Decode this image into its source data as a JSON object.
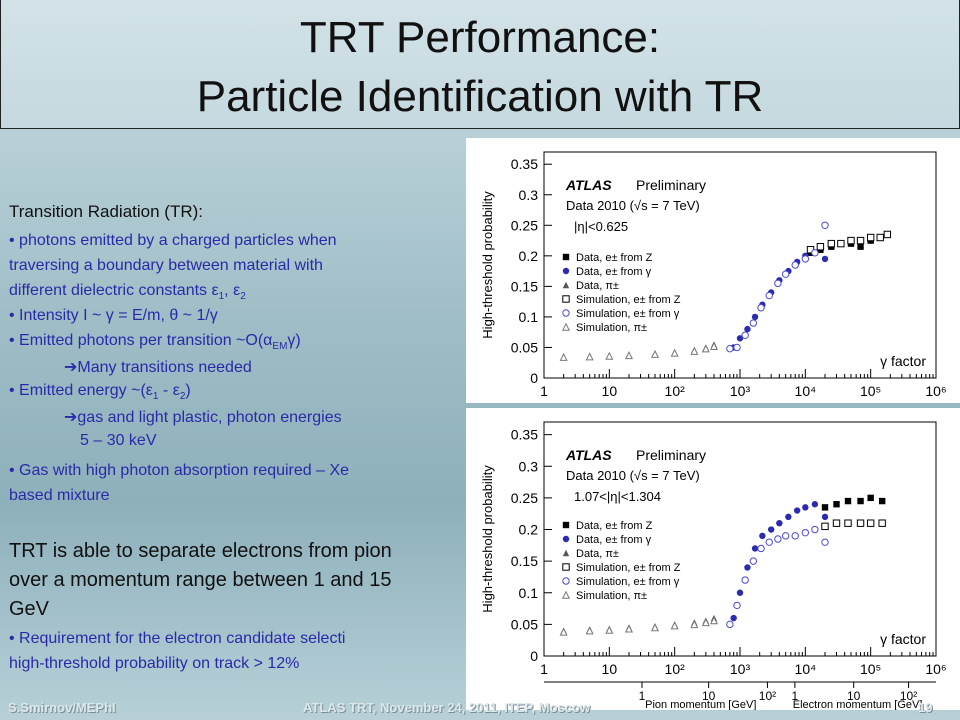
{
  "title": {
    "line1": "TRT Performance:",
    "line2": "Particle Identification with TR"
  },
  "body": {
    "tr_heading": "Transition Radiation (TR):",
    "b1a": "• photons emitted by a charged particles when",
    "b1b": "traversing a boundary between material with",
    "b1c": "different dielectric constants ε",
    "b1c_sub1": "1",
    "b1c_mid": ", ε",
    "b1c_sub2": "2",
    "b2": "• Intensity I ~ γ = E/m, θ ~ 1/γ",
    "b3": "• Emitted photons per transition ~O(α",
    "b3_sub": "EM",
    "b3_end": "γ)",
    "b3_arrow": "Many transitions needed",
    "b4": "• Emitted energy ~(ε",
    "b4_sub1": "1",
    "b4_mid": " - ε",
    "b4_sub2": "2",
    "b4_end": ")",
    "b4_arrow": "gas and light plastic, photon energies",
    "b4_range": "5 – 30 keV",
    "b5a": "• Gas with high photon absorption required – Xe",
    "b5b": "based mixture",
    "sep1": "TRT is able to separate electrons from pion",
    "sep2": "over a momentum range between 1 and 15",
    "sep3": "GeV",
    "req1": "• Requirement for the electron  candidate selecti",
    "req2": "high-threshold probability on track > 12%"
  },
  "footer": {
    "left": "S.Smirnov/MEPhI",
    "center": "ATLAS TRT, November 24, 2011, ITEP, Moscow",
    "page": "19"
  },
  "chart_data": [
    {
      "type": "scatter",
      "ylabel": "High-threshold probability",
      "xlabel": "γ factor",
      "x_scale": "log",
      "xlim": [
        1,
        1000000
      ],
      "ylim": [
        0,
        0.37
      ],
      "yticks": [
        "0",
        "0.05",
        "0.1",
        "0.15",
        "0.2",
        "0.25",
        "0.3",
        "0.35"
      ],
      "xticks": [
        "1",
        "10",
        "10²",
        "10³",
        "10⁴",
        "10⁵",
        "10⁶"
      ],
      "annotations": [
        "ATLAS",
        "Preliminary",
        "Data 2010 (√s = 7 TeV)",
        "|η|<0.625"
      ],
      "legend_position": "left-middle",
      "series": [
        {
          "name": "Data, e± from Z",
          "marker": "filled-square",
          "x": [
            12000,
            17000,
            25000,
            35000,
            50000,
            70000,
            100000,
            140000
          ],
          "y": [
            0.205,
            0.21,
            0.215,
            0.22,
            0.22,
            0.215,
            0.225,
            0.23
          ]
        },
        {
          "name": "Data, e± from γ",
          "marker": "filled-circle",
          "x": [
            800,
            1000,
            1300,
            1700,
            2200,
            3000,
            4000,
            5500,
            7500,
            10000,
            14000,
            20000
          ],
          "y": [
            0.05,
            0.065,
            0.08,
            0.1,
            0.12,
            0.14,
            0.16,
            0.175,
            0.19,
            0.2,
            0.205,
            0.195
          ]
        },
        {
          "name": "Data, π±",
          "marker": "filled-triangle",
          "x": [
            2,
            5,
            10,
            20,
            50,
            100,
            200,
            300,
            400
          ],
          "y": [
            0.035,
            0.036,
            0.037,
            0.038,
            0.04,
            0.042,
            0.046,
            0.05,
            0.055
          ]
        },
        {
          "name": "Simulation, e± from Z",
          "marker": "open-square",
          "x": [
            12000,
            17000,
            25000,
            35000,
            50000,
            70000,
            100000,
            140000,
            180000
          ],
          "y": [
            0.21,
            0.215,
            0.22,
            0.22,
            0.225,
            0.225,
            0.23,
            0.23,
            0.235
          ]
        },
        {
          "name": "Simulation, e± from γ",
          "marker": "open-circle",
          "x": [
            700,
            900,
            1200,
            1600,
            2100,
            2800,
            3800,
            5000,
            7000,
            10000,
            14000,
            20000
          ],
          "y": [
            0.048,
            0.05,
            0.07,
            0.09,
            0.115,
            0.135,
            0.155,
            0.17,
            0.185,
            0.195,
            0.205,
            0.25
          ]
        },
        {
          "name": "Simulation, π±",
          "marker": "open-triangle",
          "x": [
            2,
            5,
            10,
            20,
            50,
            100,
            200,
            300,
            400
          ],
          "y": [
            0.034,
            0.035,
            0.036,
            0.037,
            0.039,
            0.041,
            0.044,
            0.048,
            0.052
          ]
        }
      ]
    },
    {
      "type": "scatter",
      "ylabel": "High-threshold probability",
      "xlabel": "γ factor",
      "x_scale": "log",
      "xlim": [
        1,
        1000000
      ],
      "ylim": [
        0,
        0.37
      ],
      "yticks": [
        "0",
        "0.05",
        "0.1",
        "0.15",
        "0.2",
        "0.25",
        "0.3",
        "0.35"
      ],
      "xticks": [
        "1",
        "10",
        "10²",
        "10³",
        "10⁴",
        "10⁵",
        "10⁶"
      ],
      "secondary_x": {
        "pion": {
          "label": "Pion momentum [GeV]",
          "ticks": [
            "1",
            "10",
            "10²"
          ]
        },
        "electron": {
          "label": "Electron momentum [GeV]",
          "ticks": [
            "1",
            "10",
            "10²"
          ]
        }
      },
      "annotations": [
        "ATLAS",
        "Preliminary",
        "Data 2010 (√s = 7 TeV)",
        "1.07<|η|<1.304"
      ],
      "legend_position": "left-middle",
      "series": [
        {
          "name": "Data, e± from Z",
          "marker": "filled-square",
          "x": [
            20000,
            30000,
            45000,
            70000,
            100000,
            150000
          ],
          "y": [
            0.235,
            0.24,
            0.245,
            0.245,
            0.25,
            0.245
          ]
        },
        {
          "name": "Data, e± from γ",
          "marker": "filled-circle",
          "x": [
            800,
            1000,
            1300,
            1700,
            2200,
            3000,
            4000,
            5500,
            7500,
            10000,
            14000,
            20000
          ],
          "y": [
            0.06,
            0.1,
            0.14,
            0.17,
            0.19,
            0.2,
            0.21,
            0.22,
            0.23,
            0.235,
            0.24,
            0.22
          ]
        },
        {
          "name": "Data, π±",
          "marker": "filled-triangle",
          "x": [
            2,
            5,
            10,
            20,
            50,
            100,
            200,
            300,
            400
          ],
          "y": [
            0.04,
            0.042,
            0.043,
            0.045,
            0.047,
            0.05,
            0.053,
            0.056,
            0.06
          ]
        },
        {
          "name": "Simulation, e± from Z",
          "marker": "open-square",
          "x": [
            20000,
            30000,
            45000,
            70000,
            100000,
            150000
          ],
          "y": [
            0.205,
            0.21,
            0.21,
            0.21,
            0.21,
            0.21
          ]
        },
        {
          "name": "Simulation, e± from γ",
          "marker": "open-circle",
          "x": [
            700,
            900,
            1200,
            1600,
            2100,
            2800,
            3800,
            5000,
            7000,
            10000,
            14000,
            20000
          ],
          "y": [
            0.05,
            0.08,
            0.12,
            0.15,
            0.17,
            0.18,
            0.185,
            0.19,
            0.19,
            0.195,
            0.2,
            0.18
          ]
        },
        {
          "name": "Simulation, π±",
          "marker": "open-triangle",
          "x": [
            2,
            5,
            10,
            20,
            50,
            100,
            200,
            300,
            400
          ],
          "y": [
            0.038,
            0.04,
            0.041,
            0.043,
            0.045,
            0.048,
            0.05,
            0.053,
            0.056
          ]
        }
      ]
    }
  ]
}
